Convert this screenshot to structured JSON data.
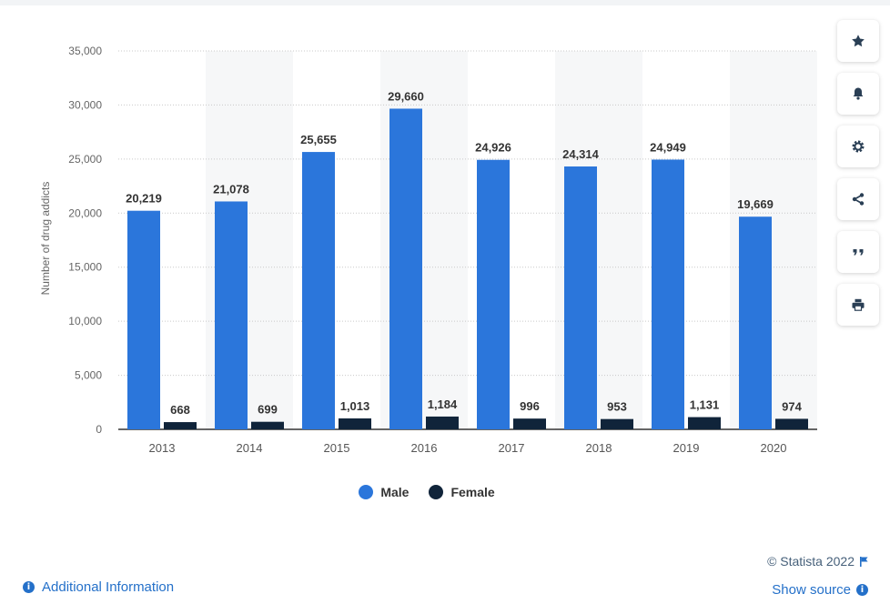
{
  "chart_data": {
    "type": "bar",
    "categories": [
      "2013",
      "2014",
      "2015",
      "2016",
      "2017",
      "2018",
      "2019",
      "2020"
    ],
    "series": [
      {
        "name": "Male",
        "values": [
          20219,
          21078,
          25655,
          29660,
          24926,
          24314,
          24949,
          19669
        ]
      },
      {
        "name": "Female",
        "values": [
          668,
          699,
          1013,
          1184,
          996,
          953,
          1131,
          974
        ]
      }
    ],
    "value_labels": {
      "Male": [
        "20,219",
        "21,078",
        "25,655",
        "29,660",
        "24,926",
        "24,314",
        "24,949",
        "19,669"
      ],
      "Female": [
        "668",
        "699",
        "1,013",
        "1,184",
        "996",
        "953",
        "1,131",
        "974"
      ]
    },
    "colors": [
      "#2b76db",
      "#10243a"
    ],
    "ylabel": "Number of drug addicts",
    "xlabel": "",
    "ylim": [
      0,
      35000
    ],
    "yticks": [
      0,
      5000,
      10000,
      15000,
      20000,
      25000,
      30000,
      35000
    ],
    "ytick_labels": [
      "0",
      "5,000",
      "10,000",
      "15,000",
      "20,000",
      "25,000",
      "30,000",
      "35,000"
    ],
    "grid": true,
    "legend_position": "bottom-center"
  },
  "legend": {
    "male": "Male",
    "female": "Female"
  },
  "toolbar": {
    "items": [
      {
        "name": "favorite",
        "icon": "star-icon"
      },
      {
        "name": "notification",
        "icon": "bell-icon"
      },
      {
        "name": "settings",
        "icon": "gear-icon"
      },
      {
        "name": "share",
        "icon": "share-icon"
      },
      {
        "name": "cite",
        "icon": "quote-icon"
      },
      {
        "name": "print",
        "icon": "print-icon"
      }
    ]
  },
  "footer": {
    "credit": "© Statista 2022",
    "show_source": "Show source",
    "additional_info": "Additional Information"
  }
}
